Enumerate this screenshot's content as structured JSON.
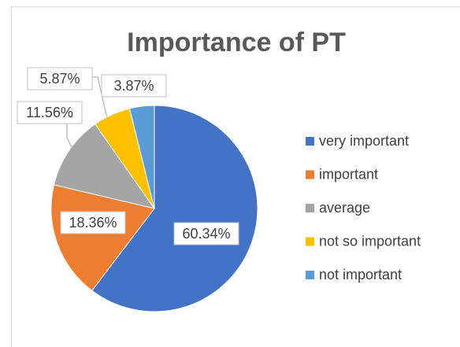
{
  "chart_data": {
    "type": "pie",
    "title": "Importance of PT",
    "categories": [
      "very important",
      "important",
      "average",
      "not so important",
      "not important"
    ],
    "values": [
      60.34,
      18.36,
      11.56,
      5.87,
      3.87
    ],
    "value_labels": [
      "60.34%",
      "18.36%",
      "11.56%",
      "5.87%",
      "3.87%"
    ],
    "colors": [
      "#4472c4",
      "#ed7d31",
      "#a5a5a5",
      "#ffc000",
      "#5b9bd5"
    ],
    "legend": "right"
  }
}
